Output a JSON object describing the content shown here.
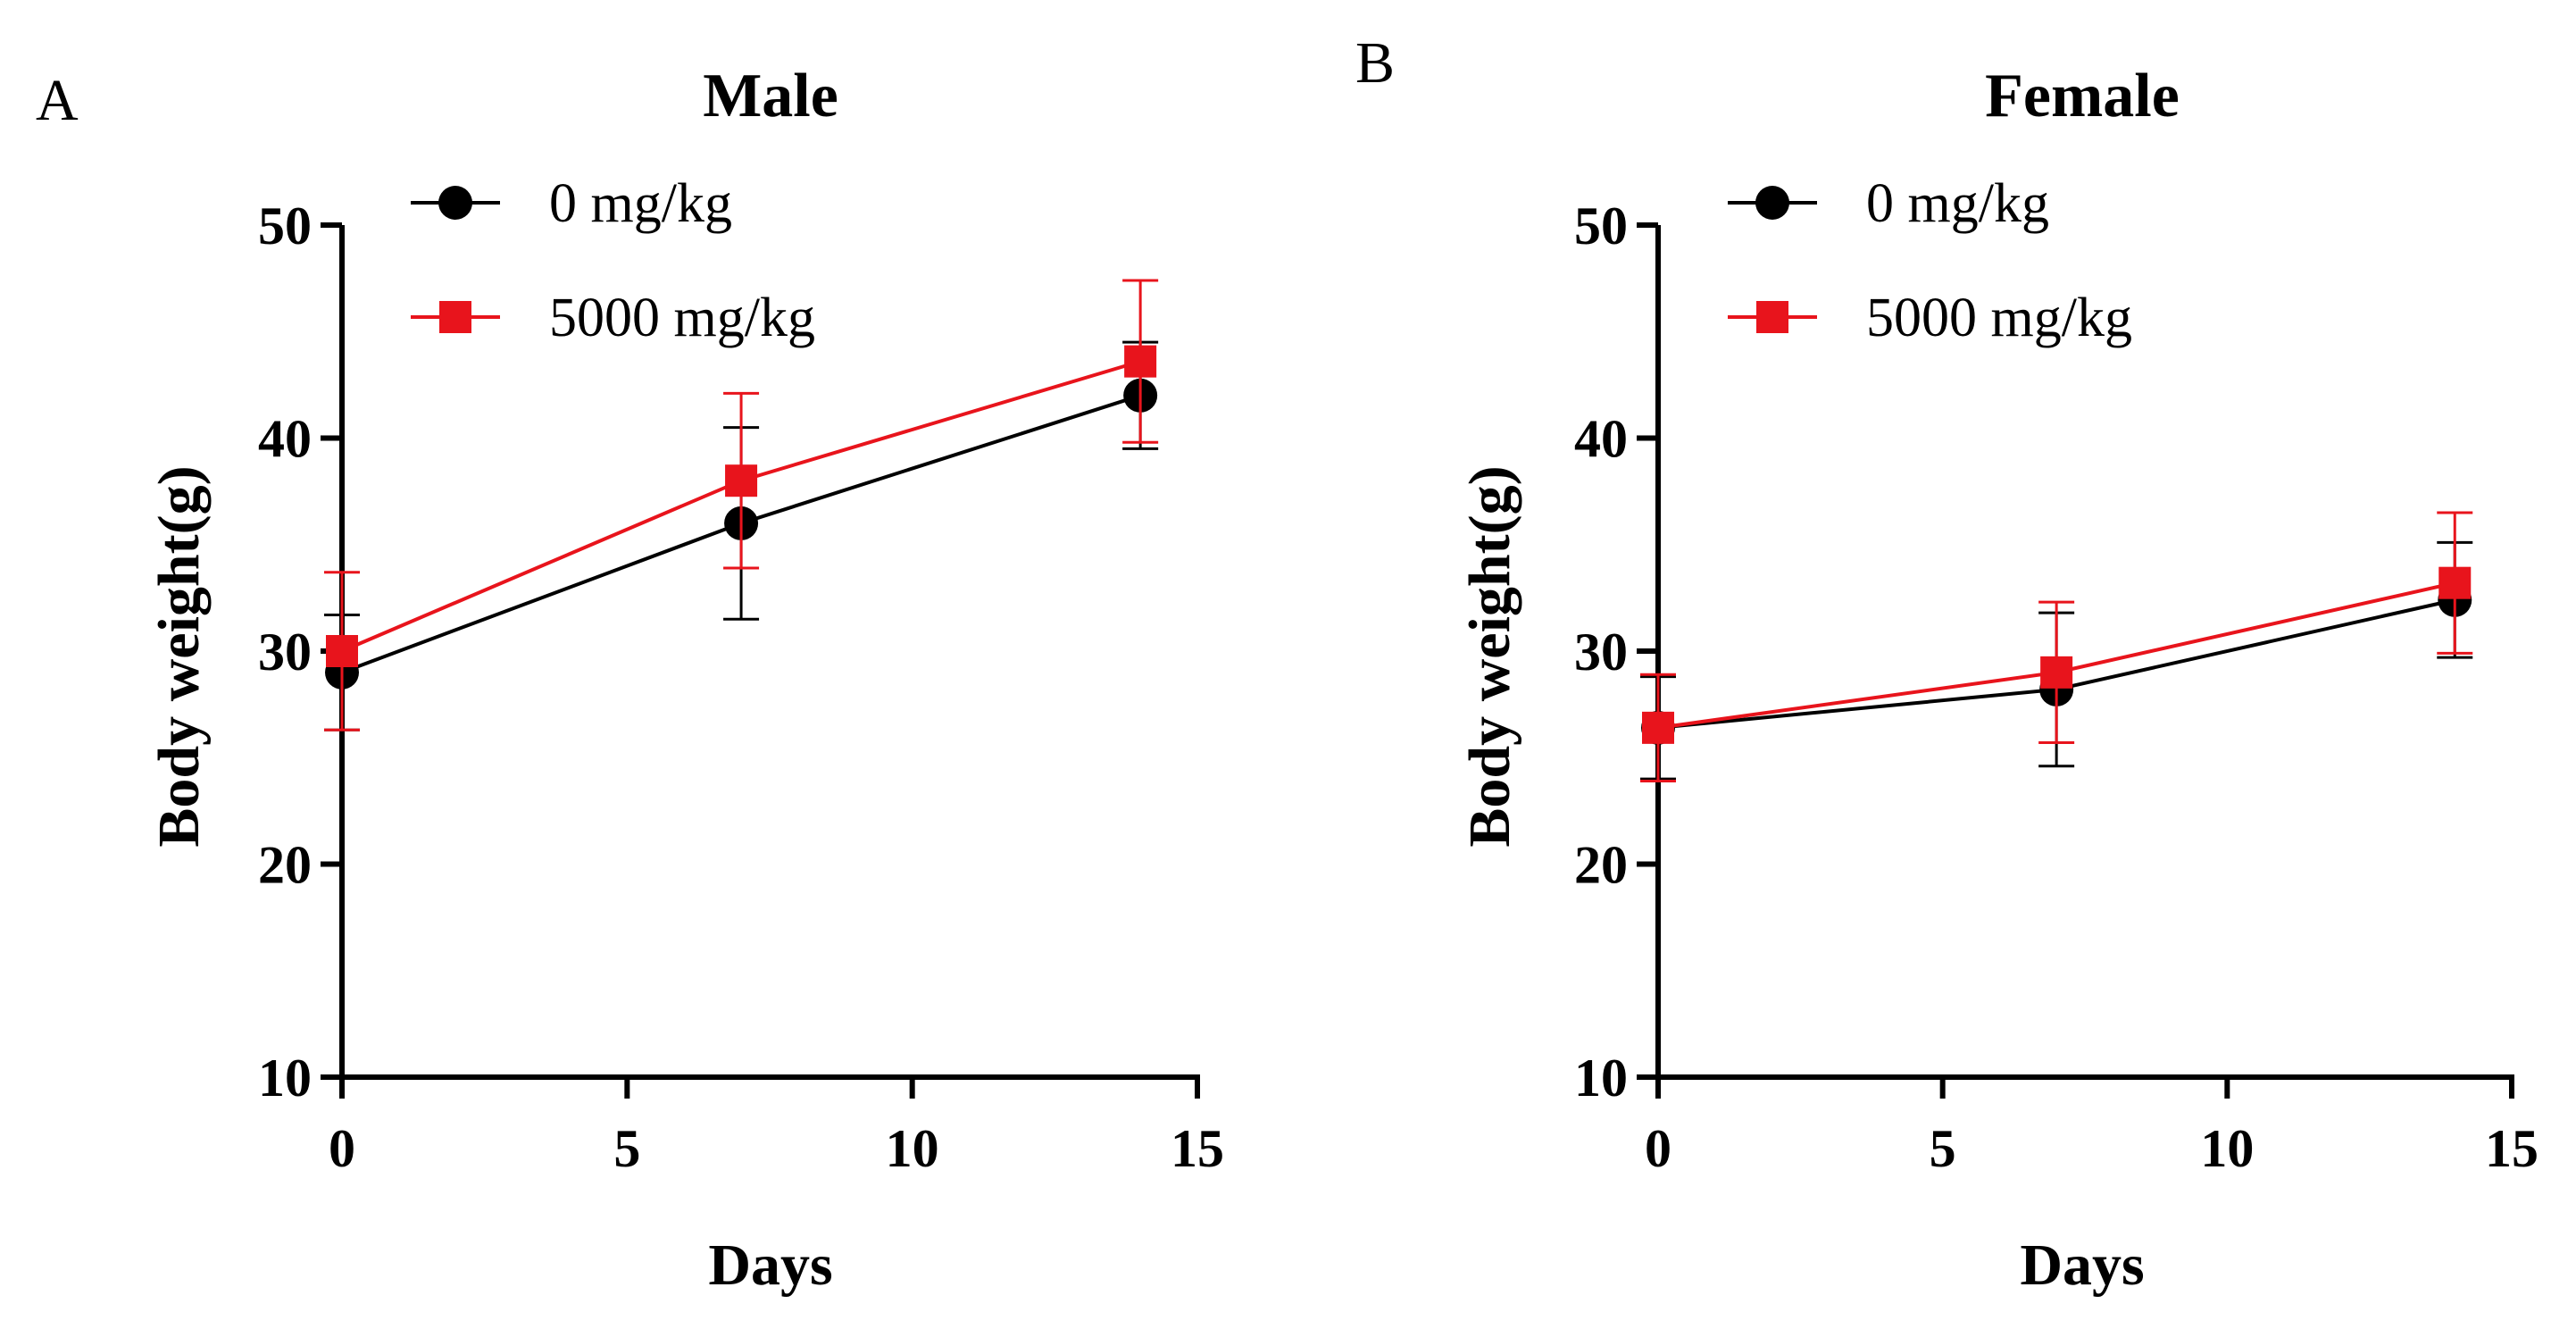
{
  "chart_data": [
    {
      "panel_label": "A",
      "type": "line",
      "title": "Male",
      "xlabel": "Days",
      "ylabel": "Body weight(g)",
      "xlim": [
        0,
        15
      ],
      "ylim": [
        10,
        50
      ],
      "xticks": [
        "0",
        "5",
        "10",
        "15"
      ],
      "yticks": [
        "10",
        "20",
        "30",
        "40",
        "50"
      ],
      "grid": false,
      "legend_position": "top-left",
      "series": [
        {
          "name": "0 mg/kg",
          "marker": "circle",
          "color": "#000000",
          "x": [
            0,
            7,
            14
          ],
          "y": [
            29.0,
            36.0,
            42.0
          ],
          "err": [
            2.7,
            4.5,
            2.5
          ]
        },
        {
          "name": "5000 mg/kg",
          "marker": "square",
          "color": "#e8141c",
          "x": [
            0,
            7,
            14
          ],
          "y": [
            30.0,
            38.0,
            43.6
          ],
          "err": [
            3.7,
            4.1,
            3.8
          ]
        }
      ]
    },
    {
      "panel_label": "B",
      "type": "line",
      "title": "Female",
      "xlabel": "Days",
      "ylabel": "Body weight(g)",
      "xlim": [
        0,
        15
      ],
      "ylim": [
        10,
        50
      ],
      "xticks": [
        "0",
        "5",
        "10",
        "15"
      ],
      "yticks": [
        "10",
        "20",
        "30",
        "40",
        "50"
      ],
      "grid": false,
      "legend_position": "top-left",
      "series": [
        {
          "name": "0 mg/kg",
          "marker": "circle",
          "color": "#000000",
          "x": [
            0,
            7,
            14
          ],
          "y": [
            26.4,
            28.2,
            32.4
          ],
          "err": [
            2.4,
            3.6,
            2.7
          ]
        },
        {
          "name": "5000 mg/kg",
          "marker": "square",
          "color": "#e8141c",
          "x": [
            0,
            7,
            14
          ],
          "y": [
            26.4,
            29.0,
            33.2
          ],
          "err": [
            2.5,
            3.3,
            3.3
          ]
        }
      ]
    }
  ]
}
